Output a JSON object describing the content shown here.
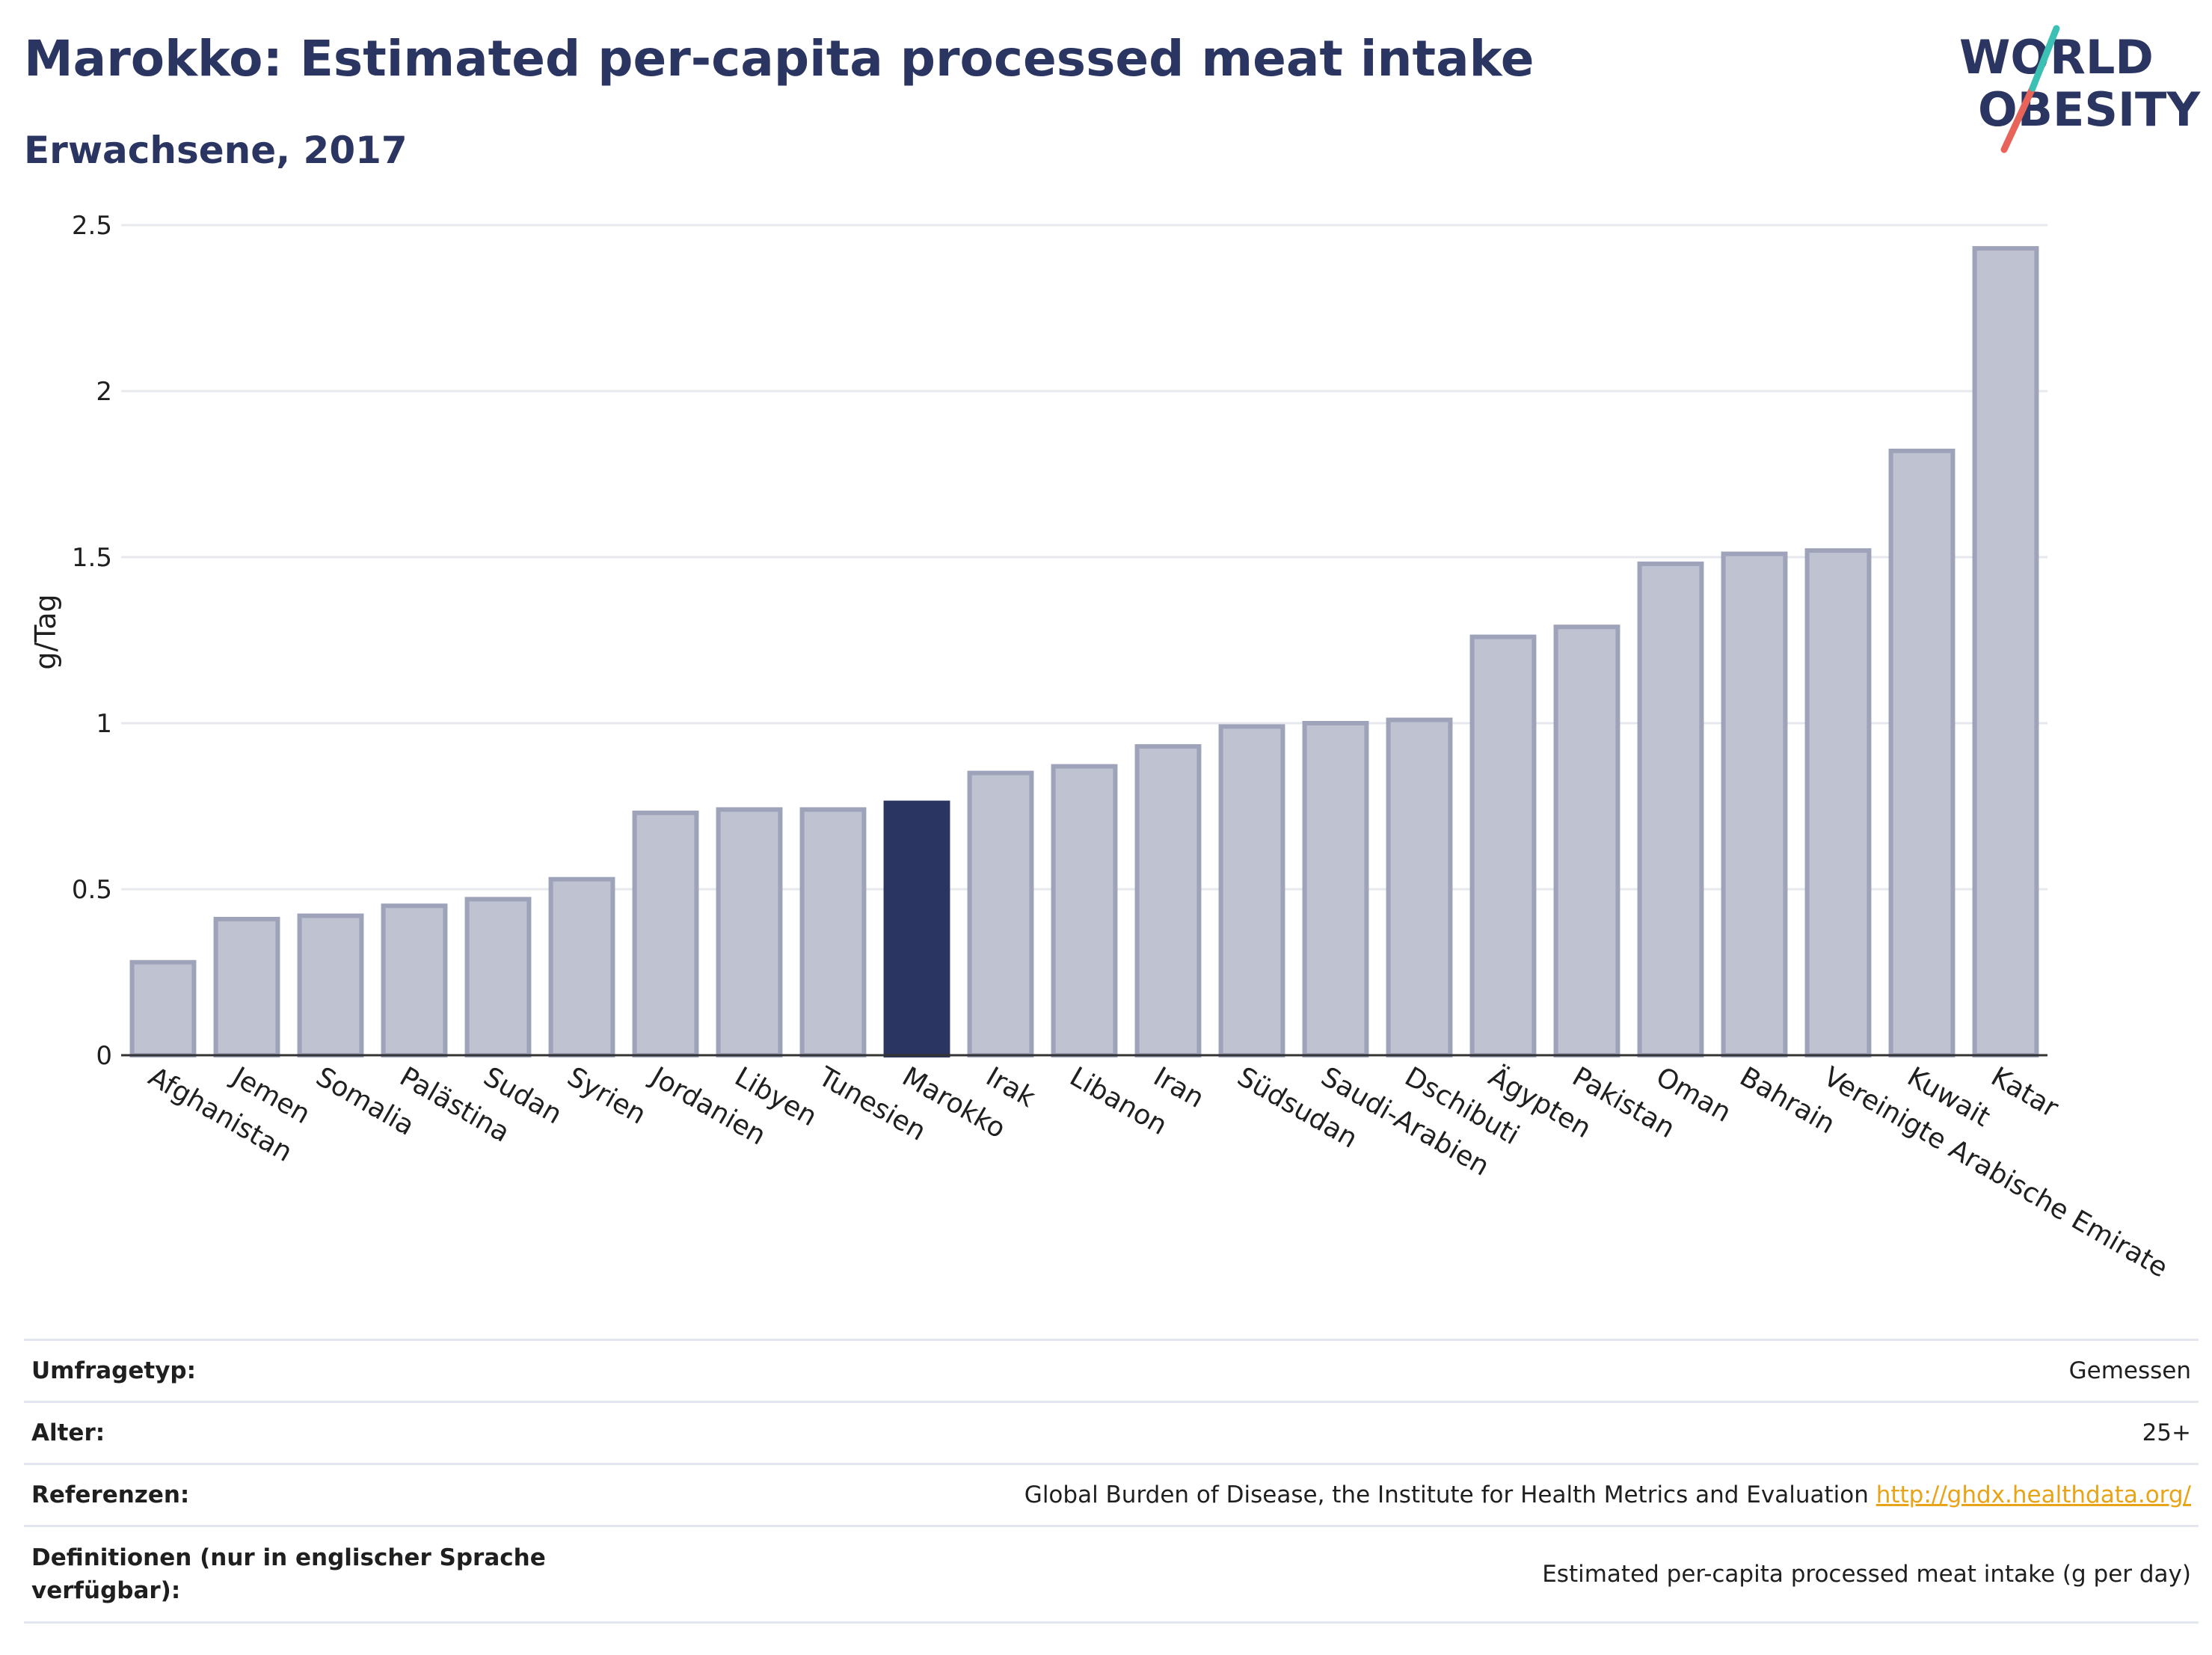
{
  "header": {
    "title": "Marokko: Estimated per-capita processed meat intake",
    "subtitle": "Erwachsene, 2017"
  },
  "logo": {
    "line1": "WORLD",
    "line2": "OBESITY"
  },
  "colors": {
    "accent": "#2b3561",
    "bar": "#bfc2d0",
    "bar_border": "#9ea3ba",
    "highlight": "#2b3561",
    "link": "#e8a317"
  },
  "chart_data": {
    "type": "bar",
    "ylabel": "g/Tag",
    "ylim": [
      0,
      2.5
    ],
    "yticks": [
      "0",
      "0.5",
      "1",
      "1.5",
      "2",
      "2.5"
    ],
    "highlight": "Marokko",
    "categories": [
      "Afghanistan",
      "Jemen",
      "Somalia",
      "Palästina",
      "Sudan",
      "Syrien",
      "Jordanien",
      "Libyen",
      "Tunesien",
      "Marokko",
      "Irak",
      "Libanon",
      "Iran",
      "Südsudan",
      "Saudi-Arabien",
      "Dschibuti",
      "Ägypten",
      "Pakistan",
      "Oman",
      "Bahrain",
      "Vereinigte Arabische Emirate",
      "Kuwait",
      "Katar"
    ],
    "values": [
      0.28,
      0.41,
      0.42,
      0.45,
      0.47,
      0.53,
      0.73,
      0.74,
      0.74,
      0.76,
      0.85,
      0.87,
      0.93,
      0.99,
      1.0,
      1.01,
      1.26,
      1.29,
      1.48,
      1.51,
      1.52,
      1.82,
      2.43
    ],
    "grid": true
  },
  "info": {
    "survey_label": "Umfragetyp:",
    "survey_value": "Gemessen",
    "age_label": "Alter:",
    "age_value": "25+",
    "refs_label": "Referenzen:",
    "refs_value": "Global Burden of Disease, the Institute for Health Metrics and Evaluation",
    "refs_link": "http://ghdx.healthdata.org/",
    "def_label": "Definitionen (nur in englischer Sprache verfügbar):",
    "def_value": "Estimated per-capita processed meat intake (g per day)"
  }
}
